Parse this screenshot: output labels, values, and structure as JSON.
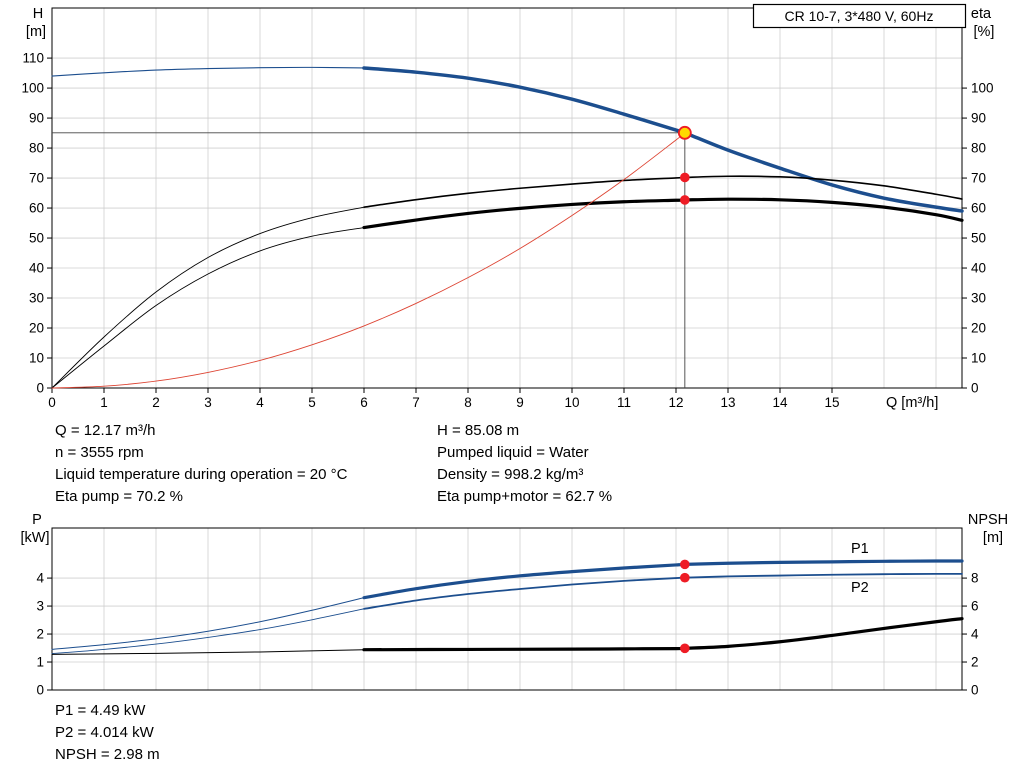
{
  "window": {
    "title_box": "CR 10-7, 3*480 V, 60Hz"
  },
  "top_chart": {
    "y_left_label_1": "H",
    "y_left_label_2": "[m]",
    "y_right_label_1": "eta",
    "y_right_label_2": "[%]",
    "x_axis_label": "Q [m³/h]"
  },
  "bottom_chart": {
    "y_left_label_1": "P",
    "y_left_label_2": "[kW]",
    "y_right_label_1": "NPSH",
    "y_right_label_2": "[m]",
    "p1_label": "P1",
    "p2_label": "P2"
  },
  "annotations": {
    "left": [
      "Q = 12.17 m³/h",
      "n = 3555 rpm",
      "Liquid temperature during operation = 20 °C",
      "Eta pump = 70.2 %"
    ],
    "right": [
      "H = 85.08 m",
      "Pumped liquid = Water",
      "Density = 998.2 kg/m³",
      "Eta pump+motor = 62.7 %"
    ]
  },
  "results": [
    "P1 = 4.49 kW",
    "P2 = 4.014 kW",
    "NPSH = 2.98 m"
  ],
  "colors": {
    "curve_blue": "#1c4e8e",
    "curve_black": "#000000",
    "curve_red": "#dd4433",
    "marker_red": "#ee1c25",
    "marker_yellow": "#ffd800",
    "grid": "#cfcfcf",
    "frame": "#000000",
    "crosshair": "#444444"
  },
  "chart_data": [
    {
      "id": "head-eta-chart",
      "type": "line",
      "title": "CR 10-7, 3*480 V, 60Hz",
      "x_range": [
        0,
        17.5
      ],
      "x_ticks": [
        0,
        1,
        2,
        3,
        4,
        5,
        6,
        7,
        8,
        9,
        10,
        11,
        12,
        13,
        14,
        15
      ],
      "x_grid": [
        1,
        2,
        3,
        4,
        5,
        6,
        7,
        8,
        9,
        10,
        11,
        12,
        13,
        14,
        15,
        16,
        17
      ],
      "y_left": {
        "label": "H [m]",
        "range": [
          0,
          126.7
        ],
        "ticks": [
          0,
          10,
          20,
          30,
          40,
          50,
          60,
          70,
          80,
          90,
          100,
          110
        ]
      },
      "y_right": {
        "label": "eta [%]",
        "range": [
          0,
          126.7
        ],
        "ticks": [
          0,
          10,
          20,
          30,
          40,
          50,
          60,
          70,
          80,
          90,
          100
        ]
      },
      "crosshair": {
        "x": 12.17,
        "y": 85.08
      },
      "series": [
        {
          "name": "head-curve-thin",
          "axis": "left",
          "color": "#1c4e8e",
          "width": 1.1,
          "x": [
            0,
            1,
            2,
            3,
            4,
            5,
            6
          ],
          "y": [
            104,
            105.1,
            106,
            106.5,
            106.8,
            106.9,
            106.7
          ]
        },
        {
          "name": "head-curve",
          "axis": "left",
          "color": "#1c4e8e",
          "width": 3.5,
          "x": [
            6,
            7,
            8,
            9,
            10,
            11,
            12,
            12.17,
            13,
            14,
            15,
            16,
            17,
            17.5
          ],
          "y": [
            106.7,
            105.3,
            103.3,
            100.3,
            96.3,
            91.3,
            86.0,
            85.08,
            79.3,
            73.3,
            67.7,
            63.3,
            60.3,
            59.0
          ]
        },
        {
          "name": "eta-pump-curve-thin",
          "axis": "right",
          "color": "#000000",
          "width": 0.9,
          "x": [
            0,
            1,
            2,
            3,
            4,
            5,
            6
          ],
          "y": [
            0,
            17,
            32,
            43.5,
            51.5,
            56.8,
            60.3
          ]
        },
        {
          "name": "eta-pump-curve",
          "axis": "right",
          "color": "#000000",
          "width": 1.6,
          "x": [
            6,
            7,
            8,
            9,
            10,
            11,
            12,
            12.17,
            13,
            14,
            15,
            16,
            17,
            17.5
          ],
          "y": [
            60.3,
            62.8,
            64.9,
            66.6,
            68.0,
            69.2,
            70.05,
            70.2,
            70.6,
            70.4,
            69.3,
            67.4,
            64.6,
            63.0
          ]
        },
        {
          "name": "eta-pump-motor-curve-thin",
          "axis": "right",
          "color": "#000000",
          "width": 0.9,
          "x": [
            0,
            1,
            2,
            3,
            4,
            5,
            6
          ],
          "y": [
            0,
            14,
            27.5,
            38,
            45.7,
            50.6,
            53.5
          ]
        },
        {
          "name": "eta-pump-motor-curve",
          "axis": "right",
          "color": "#000000",
          "width": 3.2,
          "x": [
            6,
            7,
            8,
            9,
            10,
            11,
            12,
            12.17,
            13,
            14,
            15,
            16,
            17,
            17.5
          ],
          "y": [
            53.5,
            56.0,
            58.2,
            59.9,
            61.2,
            62.1,
            62.6,
            62.7,
            62.95,
            62.75,
            61.9,
            60.3,
            57.8,
            55.9
          ]
        },
        {
          "name": "system-curve",
          "axis": "left",
          "color": "#dd4433",
          "width": 0.9,
          "x": [
            0,
            1,
            2,
            3,
            4,
            5,
            6,
            7,
            8,
            9,
            10,
            11,
            12,
            12.17
          ],
          "y": [
            0,
            0.6,
            2.3,
            5.2,
            9.2,
            14.4,
            20.7,
            28.2,
            36.8,
            46.5,
            57.5,
            69.5,
            82.7,
            85.08
          ]
        }
      ],
      "markers": [
        {
          "name": "eta-pump-point",
          "x": 12.17,
          "y": 70.2,
          "axis": "right",
          "style": "red"
        },
        {
          "name": "eta-pump-motor-point",
          "x": 12.17,
          "y": 62.7,
          "axis": "right",
          "style": "red"
        },
        {
          "name": "duty-point-marker",
          "x": 12.17,
          "y": 85.08,
          "axis": "left",
          "style": "duty"
        }
      ]
    },
    {
      "id": "power-npsh-chart",
      "type": "line",
      "x_range": [
        0,
        17.5
      ],
      "x_ticks": [],
      "x_grid": [
        1,
        2,
        3,
        4,
        5,
        6,
        7,
        8,
        9,
        10,
        11,
        12,
        13,
        14,
        15,
        16,
        17
      ],
      "y_left": {
        "label": "P [kW]",
        "range": [
          0,
          5.79
        ],
        "ticks": [
          0,
          1,
          2,
          3,
          4
        ]
      },
      "y_right": {
        "label": "NPSH [m]",
        "range": [
          0,
          11.58
        ],
        "ticks": [
          0,
          2,
          4,
          6,
          8
        ]
      },
      "series": [
        {
          "name": "p1-curve-thin",
          "axis": "left",
          "color": "#1c4e8e",
          "width": 1.0,
          "x": [
            0,
            1,
            2,
            3,
            4,
            5,
            6
          ],
          "y": [
            1.45,
            1.62,
            1.83,
            2.1,
            2.44,
            2.85,
            3.3
          ]
        },
        {
          "name": "p1-curve",
          "axis": "left",
          "color": "#1c4e8e",
          "width": 3.2,
          "x": [
            6,
            7,
            8,
            9,
            10,
            11,
            12,
            12.17,
            13,
            14,
            15,
            16,
            17,
            17.5
          ],
          "y": [
            3.3,
            3.62,
            3.88,
            4.08,
            4.23,
            4.36,
            4.47,
            4.49,
            4.53,
            4.56,
            4.58,
            4.6,
            4.61,
            4.61
          ]
        },
        {
          "name": "p2-curve-thin",
          "axis": "left",
          "color": "#1c4e8e",
          "width": 0.9,
          "x": [
            0,
            1,
            2,
            3,
            4,
            5,
            6
          ],
          "y": [
            1.3,
            1.45,
            1.64,
            1.88,
            2.16,
            2.51,
            2.9
          ]
        },
        {
          "name": "p2-curve",
          "axis": "left",
          "color": "#1c4e8e",
          "width": 1.8,
          "x": [
            6,
            7,
            8,
            9,
            10,
            11,
            12,
            12.17,
            13,
            14,
            15,
            16,
            17,
            17.5
          ],
          "y": [
            2.9,
            3.2,
            3.43,
            3.61,
            3.77,
            3.9,
            4.0,
            4.014,
            4.06,
            4.09,
            4.12,
            4.14,
            4.15,
            4.15
          ]
        },
        {
          "name": "npsh-curve-thin",
          "axis": "right",
          "color": "#000000",
          "width": 1.0,
          "x": [
            0,
            2,
            4,
            6
          ],
          "y": [
            2.55,
            2.62,
            2.72,
            2.88
          ]
        },
        {
          "name": "npsh-curve",
          "axis": "right",
          "color": "#000000",
          "width": 3.2,
          "x": [
            6,
            8,
            10,
            11,
            12,
            12.17,
            13,
            14,
            15,
            16,
            17,
            17.5
          ],
          "y": [
            2.88,
            2.9,
            2.92,
            2.94,
            2.96,
            2.98,
            3.12,
            3.45,
            3.9,
            4.4,
            4.88,
            5.1
          ]
        }
      ],
      "markers": [
        {
          "name": "p1-point",
          "x": 12.17,
          "y": 4.49,
          "axis": "left",
          "style": "red"
        },
        {
          "name": "p2-point",
          "x": 12.17,
          "y": 4.014,
          "axis": "left",
          "style": "red"
        },
        {
          "name": "npsh-point",
          "x": 12.17,
          "y": 2.98,
          "axis": "right",
          "style": "red"
        }
      ]
    }
  ]
}
